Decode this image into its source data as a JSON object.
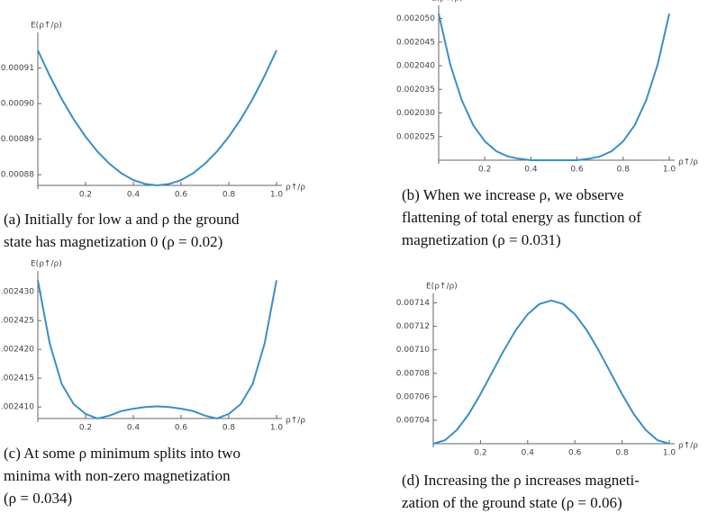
{
  "chart_data": [
    {
      "type": "line",
      "ylabel": "E(ρ↑/ρ)",
      "xlabel": "ρ↑/ρ",
      "caption": [
        "(a) Initially for low a and ρ the ground",
        "state has magnetization 0 (ρ = 0.02)"
      ],
      "x": [
        0,
        0.05,
        0.1,
        0.15,
        0.2,
        0.25,
        0.3,
        0.35,
        0.4,
        0.45,
        0.5,
        0.55,
        0.6,
        0.65,
        0.7,
        0.75,
        0.8,
        0.85,
        0.9,
        0.95,
        1
      ],
      "series": [
        {
          "color": "#3a8ec6",
          "values": [
            0.000915,
            0.0009078,
            0.0009013,
            0.0008956,
            0.0008907,
            0.0008865,
            0.0008831,
            0.0008804,
            0.0008785,
            0.0008774,
            0.000877,
            0.0008774,
            0.0008785,
            0.0008804,
            0.0008831,
            0.0008865,
            0.0008907,
            0.0008956,
            0.0009013,
            0.0009078,
            0.000915
          ]
        }
      ],
      "xlim": [
        0,
        1
      ],
      "xticks": [
        0.2,
        0.4,
        0.6,
        0.8,
        {
          "value": 1,
          "label": "1.0"
        }
      ],
      "ylim": [
        0.000877,
        0.000919
      ],
      "yticks": [
        0.00088,
        0.00089,
        {
          "value": 0.0009,
          "label": "0.00090"
        },
        0.00091
      ]
    },
    {
      "type": "line",
      "ylabel": "E(ρ↑/ρ)",
      "xlabel": "ρ↑/ρ",
      "caption": [
        "(b) When we increase ρ, we observe",
        "flattening of total energy as function of",
        "magnetization (ρ = 0.031)"
      ],
      "x": [
        0,
        0.05,
        0.1,
        0.15,
        0.2,
        0.25,
        0.3,
        0.35,
        0.4,
        0.45,
        0.5,
        0.55,
        0.6,
        0.65,
        0.7,
        0.75,
        0.8,
        0.85,
        0.9,
        0.95,
        1
      ],
      "series": [
        {
          "color": "#3a8ec6",
          "values": [
            0.002051,
            0.0020403,
            0.0020327,
            0.0020274,
            0.002024,
            0.0020219,
            0.0020208,
            0.0020203,
            0.00202,
            0.00202,
            0.00202,
            0.00202,
            0.00202,
            0.0020203,
            0.0020208,
            0.0020219,
            0.002024,
            0.0020274,
            0.0020327,
            0.0020403,
            0.002051
          ]
        }
      ],
      "xlim": [
        0,
        1
      ],
      "xticks": [
        0.2,
        0.4,
        0.6,
        0.8,
        {
          "value": 1,
          "label": "1.0"
        }
      ],
      "ylim": [
        0.00202,
        0.002052
      ],
      "yticks": [
        0.002025,
        {
          "value": 0.00203,
          "label": "0.002030"
        },
        0.002035,
        {
          "value": 0.00204,
          "label": "0.002040"
        },
        0.002045,
        {
          "value": 0.00205,
          "label": "0.002050"
        }
      ]
    },
    {
      "type": "line",
      "ylabel": "E(ρ↑/ρ)",
      "xlabel": "ρ↑/ρ",
      "caption": [
        "(c) At some ρ minimum splits into two",
        "minima with non-zero magnetization",
        "(ρ = 0.034)"
      ],
      "x": [
        0,
        0.05,
        0.1,
        0.15,
        0.2,
        0.25,
        0.3,
        0.35,
        0.4,
        0.45,
        0.5,
        0.55,
        0.6,
        0.65,
        0.7,
        0.75,
        0.8,
        0.85,
        0.9,
        0.95,
        1
      ],
      "series": [
        {
          "color": "#3a8ec6",
          "values": [
            0.002432,
            0.002421,
            0.002414,
            0.0024105,
            0.0024088,
            0.002408,
            0.0024085,
            0.0024093,
            0.0024097,
            0.00241,
            0.0024101,
            0.00241,
            0.0024097,
            0.0024093,
            0.0024085,
            0.002408,
            0.0024088,
            0.0024105,
            0.002414,
            0.002421,
            0.002432
          ]
        }
      ],
      "xlim": [
        0,
        1
      ],
      "xticks": [
        0.2,
        0.4,
        0.6,
        0.8,
        {
          "value": 1,
          "label": "1.0"
        }
      ],
      "ylim": [
        0.002408,
        0.002433
      ],
      "yticks": [
        {
          "value": 0.00241,
          "label": "0.002410"
        },
        0.002415,
        {
          "value": 0.00242,
          "label": "0.002420"
        },
        0.002425,
        {
          "value": 0.00243,
          "label": "0.002430"
        }
      ]
    },
    {
      "type": "line",
      "ylabel": "E(ρ↑/ρ)",
      "xlabel": "ρ↑/ρ",
      "caption": [
        "(d) Increasing the ρ increases magneti-",
        "zation of the ground state (ρ = 0.06)"
      ],
      "x": [
        0,
        0.05,
        0.1,
        0.15,
        0.2,
        0.25,
        0.3,
        0.35,
        0.4,
        0.45,
        0.5,
        0.55,
        0.6,
        0.65,
        0.7,
        0.75,
        0.8,
        0.85,
        0.9,
        0.95,
        1
      ],
      "series": [
        {
          "color": "#3a8ec6",
          "values": [
            0.00702,
            0.007023,
            0.0070317,
            0.0070451,
            0.0070622,
            0.007081,
            0.0070998,
            0.0071169,
            0.0071303,
            0.007139,
            0.007142,
            0.007139,
            0.0071303,
            0.0071169,
            0.0070998,
            0.007081,
            0.0070622,
            0.0070451,
            0.0070317,
            0.007023,
            0.00702
          ]
        }
      ],
      "xlim": [
        0,
        1
      ],
      "xticks": [
        0.2,
        0.4,
        0.6,
        0.8,
        {
          "value": 1,
          "label": "1.0"
        }
      ],
      "ylim": [
        0.00702,
        0.007145
      ],
      "yticks": [
        0.00704,
        0.00706,
        0.00708,
        {
          "value": 0.0071,
          "label": "0.00710"
        },
        0.00712,
        0.00714
      ]
    }
  ]
}
